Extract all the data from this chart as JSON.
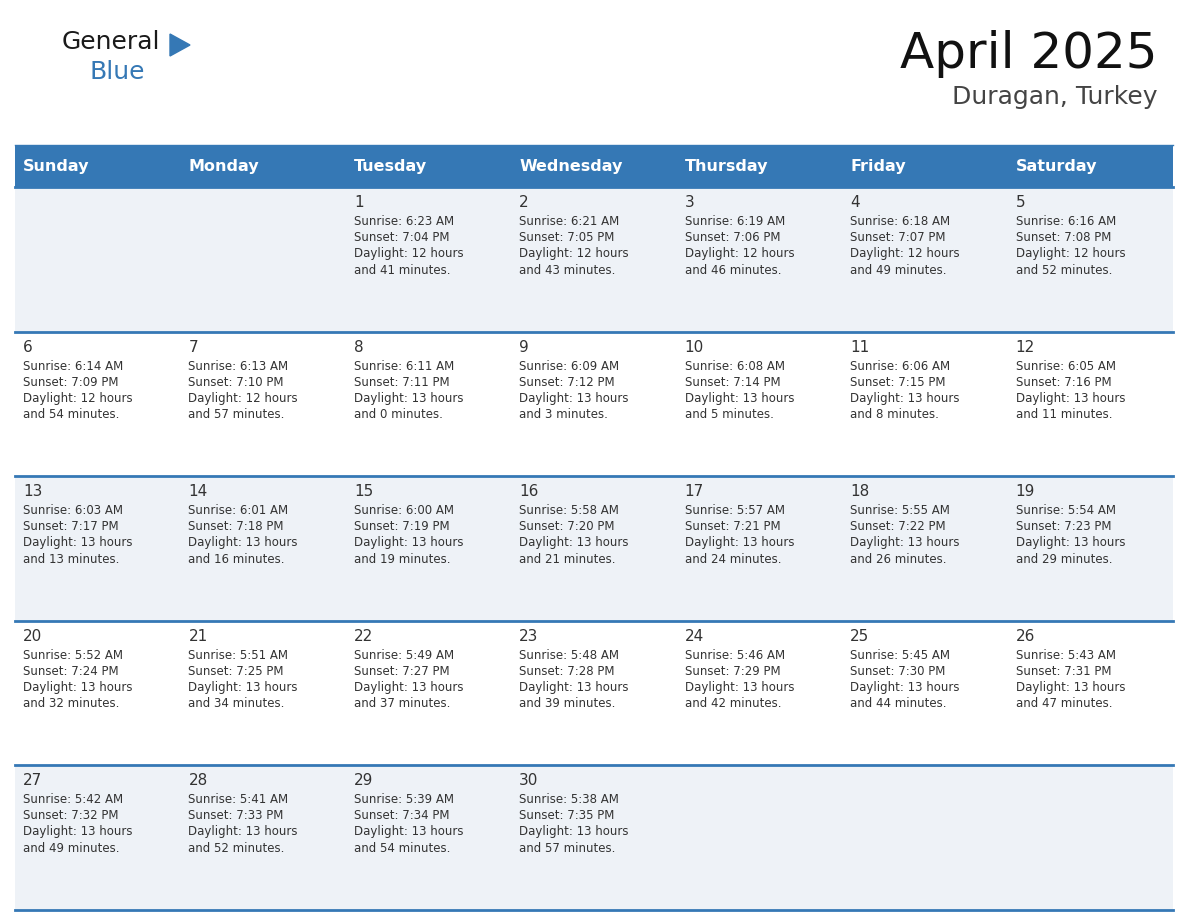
{
  "title": "April 2025",
  "subtitle": "Duragan, Turkey",
  "header_color": "#3578b5",
  "header_text_color": "#ffffff",
  "cell_bg_row0": "#eef2f7",
  "cell_bg_row1": "#ffffff",
  "cell_bg_row2": "#eef2f7",
  "cell_bg_row3": "#ffffff",
  "cell_bg_row4": "#eef2f7",
  "border_color": "#3578b5",
  "sep_color": "#3578b5",
  "text_color": "#333333",
  "days_of_week": [
    "Sunday",
    "Monday",
    "Tuesday",
    "Wednesday",
    "Thursday",
    "Friday",
    "Saturday"
  ],
  "weeks": [
    [
      {
        "day": "",
        "sunrise": "",
        "sunset": "",
        "daylight": ""
      },
      {
        "day": "",
        "sunrise": "",
        "sunset": "",
        "daylight": ""
      },
      {
        "day": "1",
        "sunrise": "Sunrise: 6:23 AM",
        "sunset": "Sunset: 7:04 PM",
        "daylight": "Daylight: 12 hours\nand 41 minutes."
      },
      {
        "day": "2",
        "sunrise": "Sunrise: 6:21 AM",
        "sunset": "Sunset: 7:05 PM",
        "daylight": "Daylight: 12 hours\nand 43 minutes."
      },
      {
        "day": "3",
        "sunrise": "Sunrise: 6:19 AM",
        "sunset": "Sunset: 7:06 PM",
        "daylight": "Daylight: 12 hours\nand 46 minutes."
      },
      {
        "day": "4",
        "sunrise": "Sunrise: 6:18 AM",
        "sunset": "Sunset: 7:07 PM",
        "daylight": "Daylight: 12 hours\nand 49 minutes."
      },
      {
        "day": "5",
        "sunrise": "Sunrise: 6:16 AM",
        "sunset": "Sunset: 7:08 PM",
        "daylight": "Daylight: 12 hours\nand 52 minutes."
      }
    ],
    [
      {
        "day": "6",
        "sunrise": "Sunrise: 6:14 AM",
        "sunset": "Sunset: 7:09 PM",
        "daylight": "Daylight: 12 hours\nand 54 minutes."
      },
      {
        "day": "7",
        "sunrise": "Sunrise: 6:13 AM",
        "sunset": "Sunset: 7:10 PM",
        "daylight": "Daylight: 12 hours\nand 57 minutes."
      },
      {
        "day": "8",
        "sunrise": "Sunrise: 6:11 AM",
        "sunset": "Sunset: 7:11 PM",
        "daylight": "Daylight: 13 hours\nand 0 minutes."
      },
      {
        "day": "9",
        "sunrise": "Sunrise: 6:09 AM",
        "sunset": "Sunset: 7:12 PM",
        "daylight": "Daylight: 13 hours\nand 3 minutes."
      },
      {
        "day": "10",
        "sunrise": "Sunrise: 6:08 AM",
        "sunset": "Sunset: 7:14 PM",
        "daylight": "Daylight: 13 hours\nand 5 minutes."
      },
      {
        "day": "11",
        "sunrise": "Sunrise: 6:06 AM",
        "sunset": "Sunset: 7:15 PM",
        "daylight": "Daylight: 13 hours\nand 8 minutes."
      },
      {
        "day": "12",
        "sunrise": "Sunrise: 6:05 AM",
        "sunset": "Sunset: 7:16 PM",
        "daylight": "Daylight: 13 hours\nand 11 minutes."
      }
    ],
    [
      {
        "day": "13",
        "sunrise": "Sunrise: 6:03 AM",
        "sunset": "Sunset: 7:17 PM",
        "daylight": "Daylight: 13 hours\nand 13 minutes."
      },
      {
        "day": "14",
        "sunrise": "Sunrise: 6:01 AM",
        "sunset": "Sunset: 7:18 PM",
        "daylight": "Daylight: 13 hours\nand 16 minutes."
      },
      {
        "day": "15",
        "sunrise": "Sunrise: 6:00 AM",
        "sunset": "Sunset: 7:19 PM",
        "daylight": "Daylight: 13 hours\nand 19 minutes."
      },
      {
        "day": "16",
        "sunrise": "Sunrise: 5:58 AM",
        "sunset": "Sunset: 7:20 PM",
        "daylight": "Daylight: 13 hours\nand 21 minutes."
      },
      {
        "day": "17",
        "sunrise": "Sunrise: 5:57 AM",
        "sunset": "Sunset: 7:21 PM",
        "daylight": "Daylight: 13 hours\nand 24 minutes."
      },
      {
        "day": "18",
        "sunrise": "Sunrise: 5:55 AM",
        "sunset": "Sunset: 7:22 PM",
        "daylight": "Daylight: 13 hours\nand 26 minutes."
      },
      {
        "day": "19",
        "sunrise": "Sunrise: 5:54 AM",
        "sunset": "Sunset: 7:23 PM",
        "daylight": "Daylight: 13 hours\nand 29 minutes."
      }
    ],
    [
      {
        "day": "20",
        "sunrise": "Sunrise: 5:52 AM",
        "sunset": "Sunset: 7:24 PM",
        "daylight": "Daylight: 13 hours\nand 32 minutes."
      },
      {
        "day": "21",
        "sunrise": "Sunrise: 5:51 AM",
        "sunset": "Sunset: 7:25 PM",
        "daylight": "Daylight: 13 hours\nand 34 minutes."
      },
      {
        "day": "22",
        "sunrise": "Sunrise: 5:49 AM",
        "sunset": "Sunset: 7:27 PM",
        "daylight": "Daylight: 13 hours\nand 37 minutes."
      },
      {
        "day": "23",
        "sunrise": "Sunrise: 5:48 AM",
        "sunset": "Sunset: 7:28 PM",
        "daylight": "Daylight: 13 hours\nand 39 minutes."
      },
      {
        "day": "24",
        "sunrise": "Sunrise: 5:46 AM",
        "sunset": "Sunset: 7:29 PM",
        "daylight": "Daylight: 13 hours\nand 42 minutes."
      },
      {
        "day": "25",
        "sunrise": "Sunrise: 5:45 AM",
        "sunset": "Sunset: 7:30 PM",
        "daylight": "Daylight: 13 hours\nand 44 minutes."
      },
      {
        "day": "26",
        "sunrise": "Sunrise: 5:43 AM",
        "sunset": "Sunset: 7:31 PM",
        "daylight": "Daylight: 13 hours\nand 47 minutes."
      }
    ],
    [
      {
        "day": "27",
        "sunrise": "Sunrise: 5:42 AM",
        "sunset": "Sunset: 7:32 PM",
        "daylight": "Daylight: 13 hours\nand 49 minutes."
      },
      {
        "day": "28",
        "sunrise": "Sunrise: 5:41 AM",
        "sunset": "Sunset: 7:33 PM",
        "daylight": "Daylight: 13 hours\nand 52 minutes."
      },
      {
        "day": "29",
        "sunrise": "Sunrise: 5:39 AM",
        "sunset": "Sunset: 7:34 PM",
        "daylight": "Daylight: 13 hours\nand 54 minutes."
      },
      {
        "day": "30",
        "sunrise": "Sunrise: 5:38 AM",
        "sunset": "Sunset: 7:35 PM",
        "daylight": "Daylight: 13 hours\nand 57 minutes."
      },
      {
        "day": "",
        "sunrise": "",
        "sunset": "",
        "daylight": ""
      },
      {
        "day": "",
        "sunrise": "",
        "sunset": "",
        "daylight": ""
      },
      {
        "day": "",
        "sunrise": "",
        "sunset": "",
        "daylight": ""
      }
    ]
  ],
  "logo_text1": "General",
  "logo_text2": "Blue",
  "logo_text1_color": "#1a1a1a",
  "logo_text2_color": "#3578b5",
  "logo_triangle_color": "#3578b5"
}
